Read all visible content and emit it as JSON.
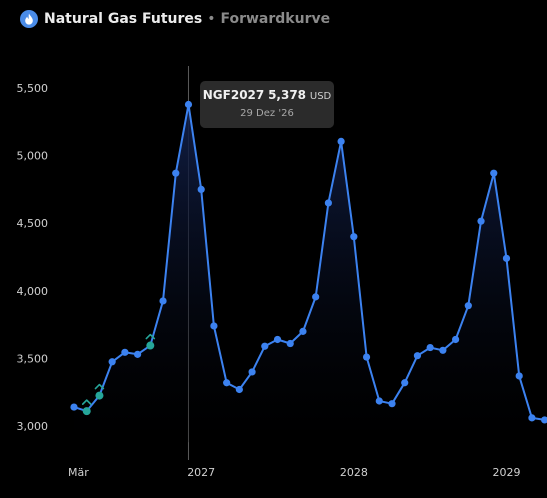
{
  "header": {
    "title": "Natural Gas Futures",
    "separator": "•",
    "subtitle": "Forwardkurve"
  },
  "tooltip": {
    "symbol": "NGF2027",
    "value": "5,378",
    "unit": "USD",
    "date": "29 Dez '26"
  },
  "colors": {
    "line": "#3c82f0",
    "point": "#3c82f0",
    "highlight_point": "#26a69a",
    "fill_top": "#12204a",
    "background": "#000000",
    "text": "#d6d6d6"
  },
  "chart_data": {
    "type": "line",
    "title": "",
    "xlabel": "",
    "ylabel": "",
    "yticks": [
      "3,000",
      "3,500",
      "4,000",
      "4,500",
      "5,000",
      "5,500"
    ],
    "ylim": [
      2880,
      5620
    ],
    "xticks": [
      "Mär",
      "2027",
      "2028",
      "2029"
    ],
    "grid": false,
    "hover_index": 9,
    "highlighted_indices": [
      1,
      2,
      6
    ],
    "series": [
      {
        "values": [
          3140,
          3110,
          3225,
          3475,
          3545,
          3530,
          3595,
          3925,
          4870,
          5378,
          4750,
          3740,
          3320,
          3270,
          3400,
          3590,
          3640,
          3610,
          3700,
          3955,
          4650,
          5105,
          4400,
          3510,
          3185,
          3165,
          3320,
          3520,
          3580,
          3560,
          3640,
          3890,
          4515,
          4870,
          4240,
          3370,
          3060,
          3045
        ]
      }
    ]
  }
}
